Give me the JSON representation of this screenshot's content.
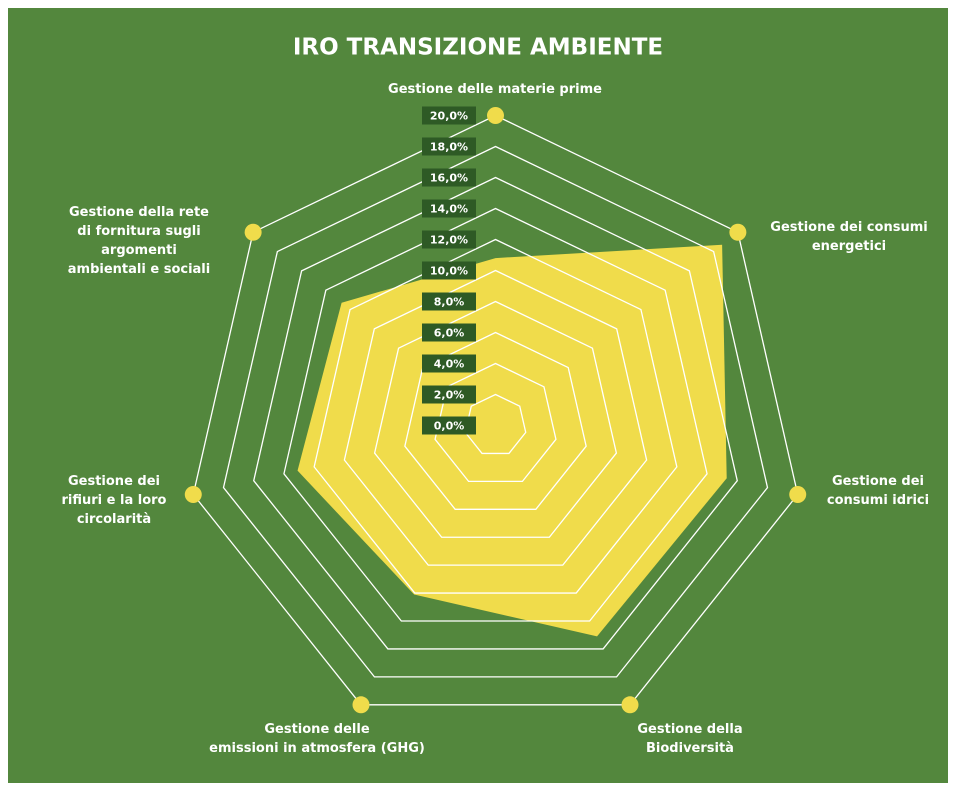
{
  "chart_data": {
    "type": "radar",
    "title": "IRO TRANSIZIONE AMBIENTE",
    "categories": [
      "Gestione delle materie prime",
      "Gestione dei consumi\nenergetici",
      "Gestione dei\nconsumi idrici",
      "Gestione della\nBiodiversità",
      "Gestione delle\nemissioni in atmosfera (GHG)",
      "Gestione dei\nrifiuri e la loro\ncircolarità",
      "Gestione della rete\ndi fornitura sugli\nargomenti\nambientali e sociali"
    ],
    "values": [
      10.8,
      18.7,
      15.3,
      15.1,
      12.1,
      13.1,
      12.7
    ],
    "color": "#f0dc4b",
    "ylim": [
      0,
      20
    ],
    "yticks": [
      {
        "value": 0,
        "label": "0,0%"
      },
      {
        "value": 2,
        "label": "2,0%"
      },
      {
        "value": 4,
        "label": "4,0%"
      },
      {
        "value": 6,
        "label": "6,0%"
      },
      {
        "value": 8,
        "label": "8,0%"
      },
      {
        "value": 10,
        "label": "10,0%"
      },
      {
        "value": 12,
        "label": "12,0%"
      },
      {
        "value": 14,
        "label": "14,0%"
      },
      {
        "value": 16,
        "label": "16,0%"
      },
      {
        "value": 18,
        "label": "18,0%"
      },
      {
        "value": 20,
        "label": "20,0%"
      }
    ],
    "grid": true
  }
}
